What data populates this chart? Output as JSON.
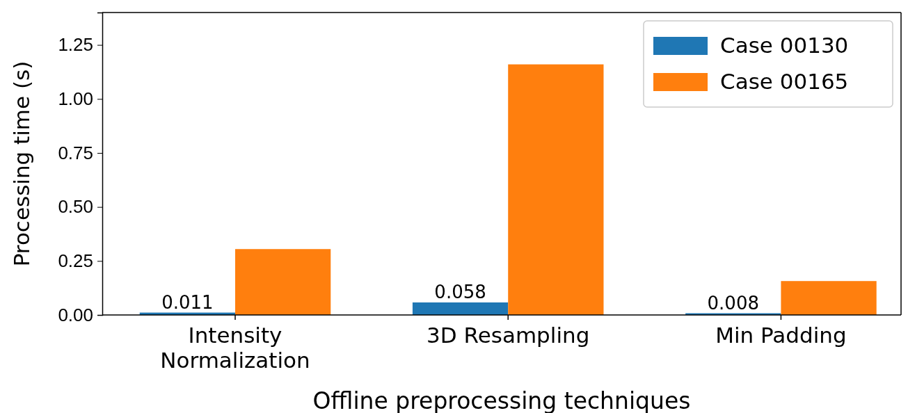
{
  "chart_data": {
    "type": "bar",
    "xlabel": "Offline preprocessing techniques",
    "ylabel": "Processing time (s)",
    "categories": [
      "Intensity\nNormalization",
      "3D Resampling",
      "Min Padding"
    ],
    "series": [
      {
        "name": "Case 00130",
        "color": "#1f77b4",
        "values": [
          0.011,
          0.058,
          0.008
        ],
        "value_labels": [
          "0.011",
          "0.058",
          "0.008"
        ]
      },
      {
        "name": "Case 00165",
        "color": "#ff7f0e",
        "values": [
          0.305,
          1.16,
          0.157
        ]
      }
    ],
    "ylim": [
      0,
      1.4
    ],
    "yticks": [
      {
        "value": 0,
        "label": "0.00"
      },
      {
        "value": 0.25,
        "label": "0.25"
      },
      {
        "value": 0.5,
        "label": "0.50"
      },
      {
        "value": 0.75,
        "label": "0.75"
      },
      {
        "value": 1,
        "label": "1.00"
      },
      {
        "value": 1.25,
        "label": "1.25"
      }
    ],
    "legend": "top right"
  }
}
